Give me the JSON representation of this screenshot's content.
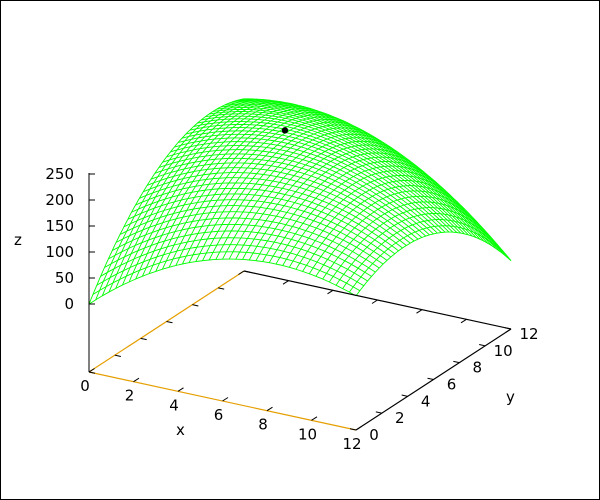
{
  "chart_data": {
    "type": "surface",
    "title": "",
    "xlabel": "x",
    "ylabel": "y",
    "zlabel": "z",
    "xlim": [
      0,
      12
    ],
    "ylim": [
      0,
      12
    ],
    "zlim": [
      0,
      250
    ],
    "xticks": [
      "0",
      "2",
      "4",
      "6",
      "8",
      "10",
      "12"
    ],
    "yticks": [
      "0",
      "2",
      "4",
      "6",
      "8",
      "10",
      "12"
    ],
    "zticks": [
      "0",
      "50",
      "100",
      "150",
      "200",
      "250"
    ],
    "grid": false,
    "legend": "none",
    "surface_style": "mesh",
    "surface_color": "#00ff00",
    "axis_highlight_color": "#e69f00",
    "sample_x": [
      0,
      2,
      4,
      6,
      8,
      10,
      12
    ],
    "sample_y": [
      0,
      2,
      4,
      6,
      8,
      10,
      12
    ],
    "z_rows_by_y": [
      [
        0,
        64.8,
        112.1,
        142.0,
        154.5,
        149.5,
        127.1
      ],
      [
        80.9,
        136.6,
        174.9,
        195.7,
        199.1,
        185.0,
        153.5
      ],
      [
        142.8,
        189.4,
        218.6,
        230.3,
        224.6,
        201.5,
        160.9
      ],
      [
        185.7,
        223.2,
        243.3,
        246.0,
        231.2,
        199.0,
        149.3
      ],
      [
        209.6,
        238.1,
        249.1,
        242.7,
        218.8,
        177.5,
        118.8
      ],
      [
        214.5,
        233.9,
        235.8,
        220.3,
        187.4,
        137.0,
        69.2
      ],
      [
        200.4,
        210.7,
        203.6,
        179.0,
        137.0,
        77.5,
        0.6
      ]
    ],
    "points": [
      {
        "x": 3,
        "y": 10,
        "z": 200,
        "color": "#000000"
      }
    ]
  }
}
